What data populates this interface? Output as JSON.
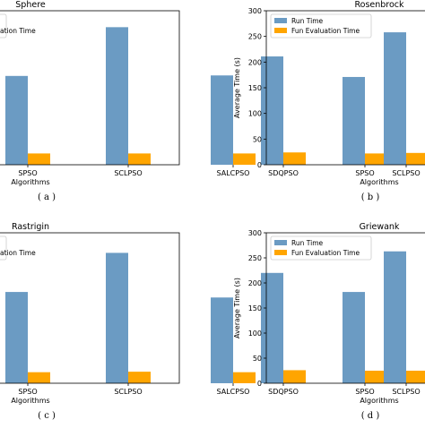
{
  "colors": {
    "run": "#6b9bc3",
    "fun": "#ffa500"
  },
  "chart_data": [
    {
      "type": "bar",
      "title": "Sphere",
      "caption": "( a )",
      "xlabel": "Algorithms",
      "ylabel": "",
      "ylim": [
        0,
        300
      ],
      "categories": [
        "SPSO",
        "SCLPSO",
        "SALCPSO"
      ],
      "series": [
        {
          "name": "Run Time",
          "values": [
            173,
            268,
            174
          ]
        },
        {
          "name": "Fun Evaluation Time",
          "values": [
            22,
            22,
            22
          ]
        }
      ],
      "legend_visible": "ation Time",
      "y_ticks": [],
      "grid": false,
      "legend": "top-left"
    },
    {
      "type": "bar",
      "title": "Rosenbrock",
      "caption": "( b )",
      "xlabel": "Algorithms",
      "ylabel": "Average Time (s)",
      "ylim": [
        0,
        300
      ],
      "categories": [
        "SDQPSO",
        "SPSO",
        "SCLPSO"
      ],
      "series": [
        {
          "name": "Run Time",
          "values": [
            211,
            171,
            258
          ]
        },
        {
          "name": "Fun Evaluation Time",
          "values": [
            24,
            22,
            23
          ]
        }
      ],
      "y_ticks": [
        "0",
        "50",
        "100",
        "150",
        "200",
        "250",
        "300"
      ],
      "grid": false,
      "legend": "top-left"
    },
    {
      "type": "bar",
      "title": "Rastrigin",
      "caption": "( c )",
      "xlabel": "Algorithms",
      "ylabel": "",
      "ylim": [
        0,
        300
      ],
      "categories": [
        "SPSO",
        "SCLPSO",
        "SALCPSO"
      ],
      "series": [
        {
          "name": "Run Time",
          "values": [
            182,
            260,
            171
          ]
        },
        {
          "name": "Fun Evaluation Time",
          "values": [
            22,
            23,
            22
          ]
        }
      ],
      "legend_visible": "ation Time",
      "y_ticks": [],
      "grid": false,
      "legend": "top-left"
    },
    {
      "type": "bar",
      "title": "Griewank",
      "caption": "( d )",
      "xlabel": "Algorithms",
      "ylabel": "Average Time (s)",
      "ylim": [
        0,
        300
      ],
      "categories": [
        "SDQPSO",
        "SPSO",
        "SCLPSO"
      ],
      "series": [
        {
          "name": "Run Time",
          "values": [
            220,
            182,
            263
          ]
        },
        {
          "name": "Fun Evaluation Time",
          "values": [
            26,
            25,
            25
          ]
        }
      ],
      "y_ticks": [
        "0",
        "50",
        "100",
        "150",
        "200",
        "250",
        "300"
      ],
      "grid": false,
      "legend": "top-left"
    }
  ]
}
